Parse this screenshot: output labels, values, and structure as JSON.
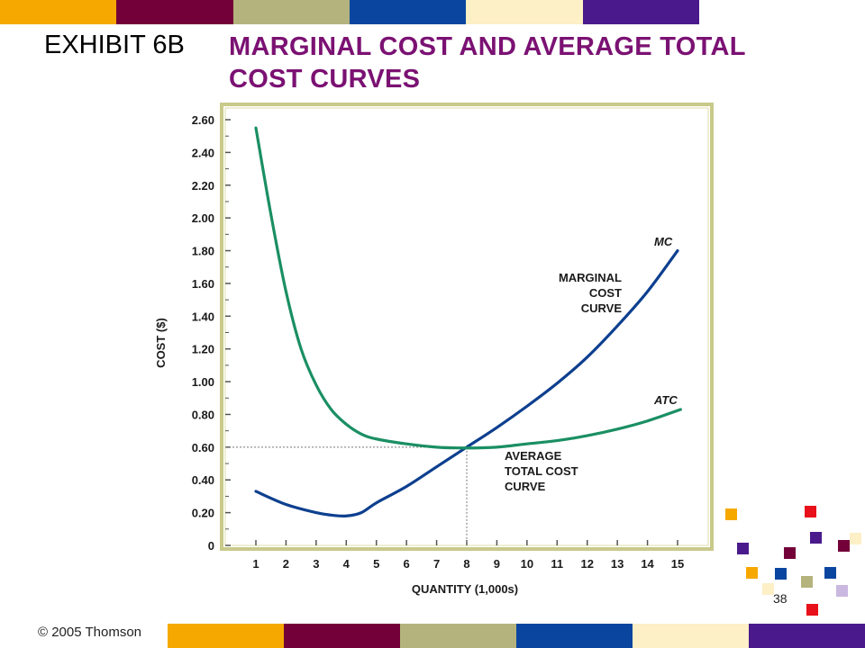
{
  "title": {
    "exhibit_label": "EXHIBIT 6B",
    "main_title": "MARGINAL COST AND AVERAGE TOTAL COST CURVES"
  },
  "footer": {
    "copyright": "© 2005 Thomson",
    "slide_number": "38"
  },
  "palette": {
    "top_bar": [
      "#f6a800",
      "#730038",
      "#b4b37d",
      "#0a46a0",
      "#fdefc6",
      "#4a1a8c"
    ],
    "bottom_bar": [
      "#f6a800",
      "#730038",
      "#b4b37d",
      "#0a46a0",
      "#fdefc6",
      "#4a1a8c"
    ],
    "mc_color": "#0d3f8f",
    "atc_color": "#1a8f63",
    "frame_color": "#c9c98a"
  },
  "chart_data": {
    "type": "line",
    "title": "MARGINAL COST AND AVERAGE TOTAL COST CURVES",
    "xlabel": "QUANTITY (1,000s)",
    "ylabel": "COST ($)",
    "xlim": [
      0,
      15.5
    ],
    "ylim": [
      0,
      2.7
    ],
    "x_ticks": [
      "1",
      "2",
      "3",
      "4",
      "5",
      "6",
      "7",
      "8",
      "9",
      "10",
      "11",
      "12",
      "13",
      "14",
      "15"
    ],
    "y_ticks": [
      "0",
      "0.20",
      "0.40",
      "0.60",
      "0.80",
      "1.00",
      "1.20",
      "1.40",
      "1.60",
      "1.80",
      "2.00",
      "2.20",
      "2.40",
      "2.60"
    ],
    "grid": false,
    "series": [
      {
        "name": "MC",
        "x": [
          1,
          2,
          3,
          3.5,
          4,
          4.5,
          5,
          6,
          7,
          8,
          9,
          10,
          11,
          12,
          13,
          14,
          15
        ],
        "y": [
          0.33,
          0.25,
          0.2,
          0.185,
          0.18,
          0.2,
          0.26,
          0.36,
          0.48,
          0.6,
          0.72,
          0.85,
          0.99,
          1.15,
          1.34,
          1.55,
          1.8
        ]
      },
      {
        "name": "ATC",
        "x": [
          1,
          1.5,
          2,
          2.5,
          3,
          3.5,
          4,
          4.5,
          5,
          6,
          7,
          8,
          9,
          10,
          11,
          12,
          13,
          14,
          15.1
        ],
        "y": [
          2.55,
          2.02,
          1.55,
          1.2,
          0.98,
          0.83,
          0.74,
          0.68,
          0.65,
          0.62,
          0.6,
          0.595,
          0.6,
          0.62,
          0.64,
          0.67,
          0.71,
          0.76,
          0.83
        ]
      }
    ],
    "annotations": {
      "mc_tag": "MC",
      "mc_desc": [
        "MARGINAL",
        "COST",
        "CURVE"
      ],
      "atc_tag": "ATC",
      "atc_desc": [
        "AVERAGE",
        "TOTAL COST",
        "CURVE"
      ]
    },
    "reference_point": {
      "x": 8,
      "y": 0.6
    }
  }
}
